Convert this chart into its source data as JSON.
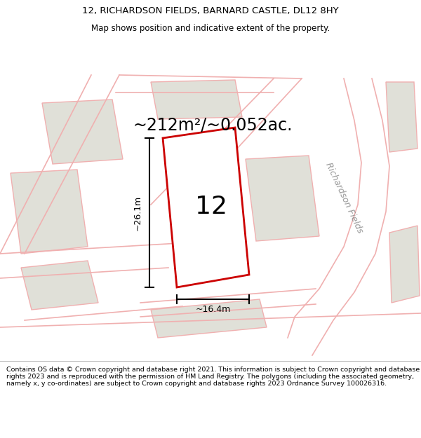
{
  "title_line1": "12, RICHARDSON FIELDS, BARNARD CASTLE, DL12 8HY",
  "title_line2": "Map shows position and indicative extent of the property.",
  "area_label": "~212m²/~0.052ac.",
  "plot_number": "12",
  "dim_width": "~16.4m",
  "dim_height": "~26.1m",
  "street_label": "Richardson Fields",
  "footer_text": "Contains OS data © Crown copyright and database right 2021. This information is subject to Crown copyright and database rights 2023 and is reproduced with the permission of HM Land Registry. The polygons (including the associated geometry, namely x, y co-ordinates) are subject to Crown copyright and database rights 2023 Ordnance Survey 100026316.",
  "map_bg": "#f2f2ee",
  "plot_fill": "#ffffff",
  "plot_edge": "#cc0000",
  "neighbor_fill": "#e0e0d8",
  "neighbor_edge": "#f0b0b0",
  "road_color": "#f0b0b0",
  "footer_bg": "#ffffff",
  "title_bg": "#ffffff",
  "title_fontsize": 9.5,
  "subtitle_fontsize": 8.5,
  "area_fontsize": 17,
  "plot_num_fontsize": 26,
  "dim_fontsize": 9,
  "street_fontsize": 9,
  "footer_fontsize": 6.8
}
